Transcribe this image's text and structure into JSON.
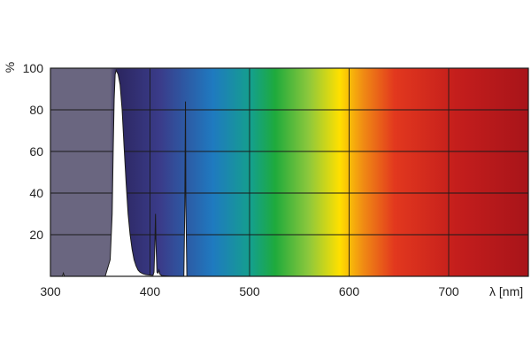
{
  "chart_data": {
    "type": "area",
    "title": "",
    "xlabel": "λ [nm]",
    "ylabel": "%",
    "xlim": [
      300,
      780
    ],
    "ylim": [
      0,
      100
    ],
    "x_ticks": [
      300,
      400,
      500,
      600,
      700
    ],
    "y_ticks": [
      20,
      40,
      60,
      80,
      100
    ],
    "grid": true,
    "background": "visible spectrum color gradient",
    "series": [
      {
        "x": [
          300,
          312,
          313,
          314,
          320,
          340,
          355,
          360,
          362,
          363,
          364,
          365,
          366,
          367,
          368,
          370,
          372,
          374,
          376,
          378,
          380,
          382,
          384,
          386,
          388,
          390,
          393,
          396,
          400,
          402,
          403,
          404,
          405,
          405.5,
          406,
          407,
          408,
          409,
          410,
          412,
          420,
          430,
          434,
          435,
          435.6,
          436,
          437,
          440,
          460,
          500,
          600,
          700,
          780
        ],
        "y": [
          0,
          0,
          1.5,
          0,
          0,
          0,
          0,
          8,
          30,
          60,
          85,
          97,
          99,
          98,
          97,
          92,
          80,
          62,
          45,
          30,
          20,
          13,
          8,
          5,
          3,
          2,
          1.2,
          0.8,
          0.6,
          0.5,
          0.5,
          2,
          18,
          30,
          15,
          2,
          1.5,
          3,
          1,
          0.3,
          0,
          0,
          0,
          36,
          84,
          34,
          0,
          0,
          0,
          0,
          0,
          0,
          0
        ]
      }
    ]
  },
  "colors": {
    "curve_fill": "#ffffff",
    "curve_stroke": "#1a1a1a",
    "grid": "#1a1a1a",
    "uv_region": "#6a6680",
    "violet": "#2c2660",
    "blue": "#1f7ac0",
    "green": "#1eaa3c",
    "yellow": "#ffe000",
    "orange": "#f08a14",
    "red": "#d8281c",
    "deep_red": "#a8141a"
  }
}
